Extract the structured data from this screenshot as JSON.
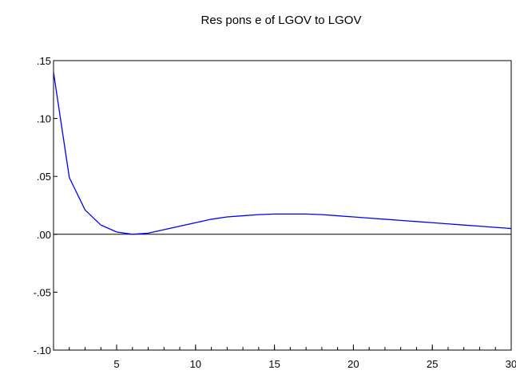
{
  "chart_data": {
    "type": "line",
    "title": "Res pons e of LGOV to LGOV",
    "xlabel": "",
    "ylabel": "",
    "xlim": [
      1,
      30
    ],
    "ylim": [
      -0.1,
      0.15
    ],
    "x_ticks": [
      5,
      10,
      15,
      20,
      25,
      30
    ],
    "x_tick_labels": [
      "5",
      "10",
      "15",
      "20",
      "25",
      "30"
    ],
    "y_ticks": [
      0.15,
      0.1,
      0.05,
      0.0,
      -0.05,
      -0.1
    ],
    "y_tick_labels": [
      ".15",
      ".10",
      ".05",
      ".00",
      "-.05",
      "-.10"
    ],
    "zero_line": true,
    "grid": false,
    "series": [
      {
        "color": "#0000ff",
        "x": [
          1,
          2,
          3,
          4,
          5,
          6,
          7,
          8,
          9,
          10,
          11,
          12,
          13,
          14,
          15,
          16,
          17,
          18,
          19,
          20,
          21,
          22,
          23,
          24,
          25,
          26,
          27,
          28,
          29,
          30
        ],
        "values": [
          0.14,
          0.049,
          0.021,
          0.008,
          0.002,
          0.0,
          0.001,
          0.004,
          0.007,
          0.01,
          0.013,
          0.015,
          0.016,
          0.017,
          0.0175,
          0.0175,
          0.0175,
          0.017,
          0.016,
          0.015,
          0.014,
          0.013,
          0.012,
          0.011,
          0.01,
          0.009,
          0.008,
          0.007,
          0.006,
          0.005
        ]
      }
    ]
  }
}
